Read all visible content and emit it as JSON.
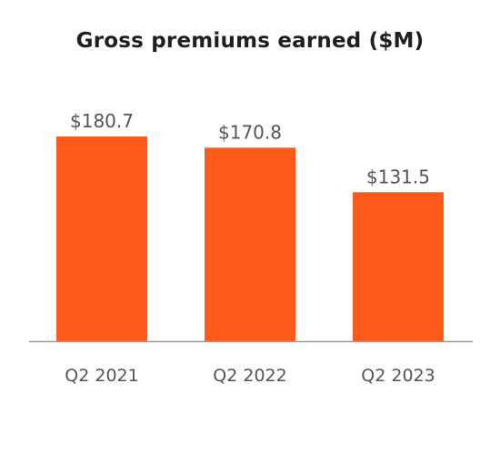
{
  "chart_data": {
    "type": "bar",
    "title": "Gross premiums earned ($M)",
    "categories": [
      "Q2 2021",
      "Q2 2022",
      "Q2 2023"
    ],
    "values": [
      180.7,
      170.8,
      131.5
    ],
    "value_labels": [
      "$180.7",
      "$170.8",
      "$131.5"
    ],
    "xlabel": "",
    "ylabel": "",
    "ylim": [
      0,
      180.7
    ],
    "grid": false,
    "bar_color": "#ff5a1a",
    "axis_color": "#9a9a9a",
    "text_color": "#555555"
  }
}
